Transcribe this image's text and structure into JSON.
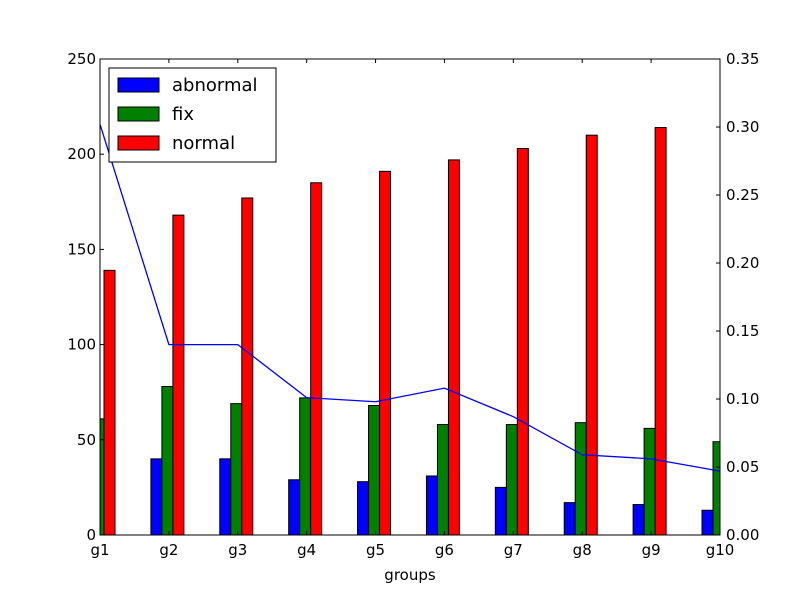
{
  "chart_data": {
    "type": "bar",
    "categories": [
      "g1",
      "g2",
      "g3",
      "g4",
      "g5",
      "g6",
      "g7",
      "g8",
      "g9",
      "g10"
    ],
    "xlabel": "groups",
    "ylabel": "",
    "ylim": [
      0,
      250
    ],
    "yticks": [
      0,
      50,
      100,
      150,
      200,
      250
    ],
    "y2lim": [
      0,
      0.35
    ],
    "y2ticks": [
      "0.00",
      "0.05",
      "0.10",
      "0.15",
      "0.20",
      "0.25",
      "0.30",
      "0.35"
    ],
    "grid": false,
    "legend_position": "top-left",
    "series": [
      {
        "name": "abnormal",
        "color": "#0000ff",
        "values": [
          0,
          40,
          40,
          29,
          28,
          31,
          25,
          17,
          16,
          13
        ]
      },
      {
        "name": "fix",
        "color": "#008000",
        "values": [
          61,
          78,
          69,
          72,
          68,
          58,
          58,
          59,
          56,
          49
        ]
      },
      {
        "name": "normal",
        "color": "#ff0000",
        "values": [
          139,
          168,
          177,
          185,
          191,
          197,
          203,
          210,
          214,
          null
        ]
      }
    ],
    "line_series": {
      "axis": "right",
      "color": "#0000ff",
      "values": [
        0.302,
        0.14,
        0.14,
        0.101,
        0.098,
        0.108,
        0.087,
        0.059,
        0.056,
        0.047
      ]
    }
  }
}
